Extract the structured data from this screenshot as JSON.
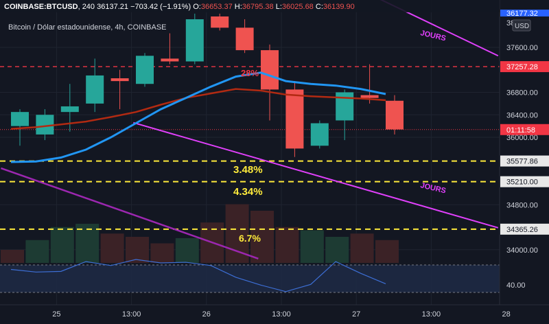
{
  "header": {
    "symbol": "COINBASE:BTCUSD",
    "interval": "240",
    "last": "36137.21",
    "change": "−703.42 (−1.91%)",
    "open_label": "O:",
    "open": "36653.37",
    "high_label": "H:",
    "high": "36795.38",
    "low_label": "L:",
    "low": "36025.68",
    "close_label": "C:",
    "close": "36139.90"
  },
  "subtitle": "Bitcoin / Dólar estadounidense, 4h, COINBASE",
  "currency_badge": "USD",
  "price_axis": {
    "ticks": [
      {
        "value": 37600,
        "label": "37600.00"
      },
      {
        "value": 36800,
        "label": "36800.00"
      },
      {
        "value": 36400,
        "label": "36400.00"
      },
      {
        "value": 36000,
        "label": "36000.00"
      },
      {
        "value": 34800,
        "label": "34800.00"
      },
      {
        "value": 34000,
        "label": "34000.00"
      }
    ],
    "top_partial_label": "38",
    "top_partial_label_2": "36177.32"
  },
  "time_axis": [
    {
      "label": "25",
      "slot": 1
    },
    {
      "label": "13:00",
      "slot": 4
    },
    {
      "label": "26",
      "slot": 7
    },
    {
      "label": "13:00",
      "slot": 10
    },
    {
      "label": "27",
      "slot": 13
    },
    {
      "label": "13:00",
      "slot": 16
    },
    {
      "label": "28",
      "slot": 19
    }
  ],
  "rsi_axis_label": "40.00",
  "price_badges": [
    {
      "value": 37257.28,
      "label": "37257.28",
      "color": "#f23645"
    },
    {
      "value": 36137.21,
      "label": "01:11:58",
      "color": "#f23645"
    },
    {
      "value": 35577.86,
      "label": "35577.86",
      "color": "#e8e8e8"
    },
    {
      "value": 35210.0,
      "label": "35210.00",
      "color": "#e8e8e8"
    },
    {
      "value": 34365.26,
      "label": "34365.26",
      "color": "#e8e8e8"
    }
  ],
  "annotations": {
    "pct_top": "28%",
    "pct_1": "3.48%",
    "pct_2": "4.34%",
    "pct_3": "6.7%",
    "jours_1": "JOURS",
    "jours_2": "JOURS"
  },
  "colors": {
    "up": "#26a69a",
    "down": "#ef5350",
    "ema_fast": "#2196f3",
    "ema_slow": "#b22a12",
    "trendline": "#e040fb",
    "trendline2": "#9c27b0",
    "level": "#ffeb3b",
    "resistance": "#f23645"
  },
  "chart_data": {
    "type": "candlestick",
    "title": "Bitcoin / Dólar estadounidense, 4h, COINBASE",
    "interval": "4h",
    "candles": [
      {
        "slot": 0,
        "open": 36200,
        "high": 36500,
        "low": 35850,
        "close": 36450
      },
      {
        "slot": 1,
        "open": 36050,
        "high": 36500,
        "low": 35950,
        "close": 36400
      },
      {
        "slot": 2,
        "open": 36450,
        "high": 36950,
        "low": 36100,
        "close": 36550
      },
      {
        "slot": 3,
        "open": 36600,
        "high": 37400,
        "low": 36450,
        "close": 37100
      },
      {
        "slot": 4,
        "open": 37050,
        "high": 37200,
        "low": 36500,
        "close": 37000
      },
      {
        "slot": 5,
        "open": 36950,
        "high": 37500,
        "low": 36900,
        "close": 37450
      },
      {
        "slot": 6,
        "open": 37400,
        "high": 37850,
        "low": 37300,
        "close": 37350
      },
      {
        "slot": 7,
        "open": 37350,
        "high": 38200,
        "low": 37300,
        "close": 38100
      },
      {
        "slot": 8,
        "open": 38150,
        "high": 38200,
        "low": 37900,
        "close": 37950
      },
      {
        "slot": 9,
        "open": 37950,
        "high": 38100,
        "low": 37500,
        "close": 37550
      },
      {
        "slot": 10,
        "open": 37550,
        "high": 37650,
        "low": 36300,
        "close": 36850
      },
      {
        "slot": 11,
        "open": 36850,
        "high": 37000,
        "low": 35650,
        "close": 35800
      },
      {
        "slot": 12,
        "open": 35850,
        "high": 36300,
        "low": 35800,
        "close": 36250
      },
      {
        "slot": 13,
        "open": 36300,
        "high": 36850,
        "low": 35950,
        "close": 36800
      },
      {
        "slot": 14,
        "open": 36750,
        "high": 37300,
        "low": 36600,
        "close": 36700
      },
      {
        "slot": 15,
        "open": 36650,
        "high": 36750,
        "low": 36050,
        "close": 36140
      }
    ],
    "ema_fast": [
      35560,
      35570,
      35640,
      35780,
      36000,
      36250,
      36500,
      36700,
      36900,
      37080,
      37150,
      37000,
      36950,
      36920,
      36860,
      36770
    ],
    "ema_slow": [
      36150,
      36180,
      36230,
      36280,
      36360,
      36450,
      36580,
      36700,
      36780,
      36860,
      36830,
      36760,
      36730,
      36710,
      36690,
      36660
    ],
    "volume": [
      20,
      35,
      55,
      60,
      45,
      40,
      30,
      38,
      62,
      90,
      80,
      55,
      50,
      40,
      45,
      35
    ],
    "volume_colors": [
      "down",
      "up",
      "up",
      "up",
      "down",
      "down",
      "down",
      "up",
      "down",
      "down",
      "down",
      "down",
      "up",
      "up",
      "down",
      "down"
    ],
    "rsi": [
      50,
      46,
      47,
      62,
      56,
      67,
      60,
      61,
      56,
      38,
      26,
      16,
      27,
      62,
      44,
      28
    ],
    "horizontal_levels": [
      37257.28,
      35577.86,
      35210.0,
      34365.26
    ],
    "current_price": 36137.21
  }
}
